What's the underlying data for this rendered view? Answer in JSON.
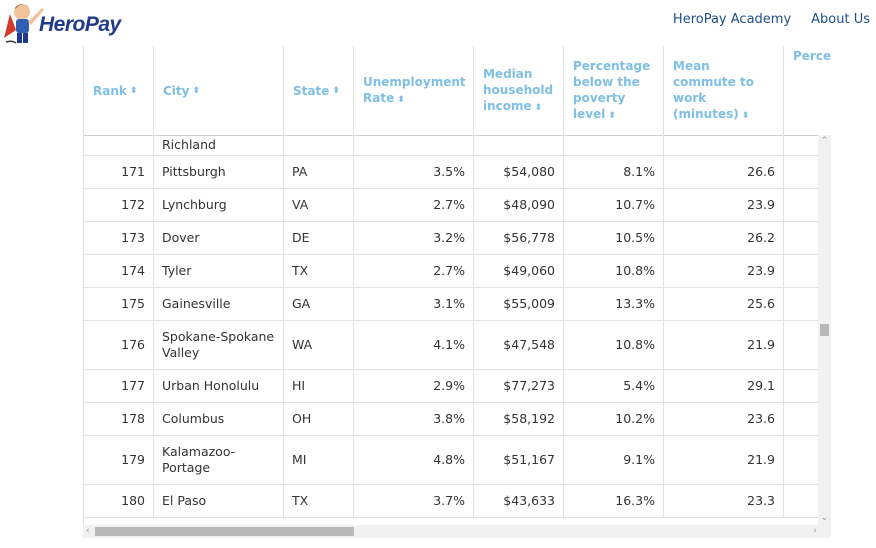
{
  "brand": {
    "logo_text": "HeroPay"
  },
  "nav": {
    "academy": "HeroPay Academy",
    "about": "About Us"
  },
  "table": {
    "headers": {
      "rank": "Rank",
      "city": "City",
      "state": "State",
      "unemployment": "Unemployment Rate",
      "median_income": "Median household income",
      "poverty": "Percentage below the poverty level",
      "commute": "Mean commute to work (minutes)",
      "bachelors": "Percentage of workforce with bachelor's degree or higher"
    },
    "sort_icon": "⬍",
    "partial_row": {
      "city": "Richland",
      "median_income": ""
    },
    "rows": [
      {
        "rank": "171",
        "city": "Pittsburgh",
        "state": "PA",
        "unemployment": "3.5%",
        "median_income": "$54,080",
        "poverty": "8.1%",
        "commute": "26.6"
      },
      {
        "rank": "172",
        "city": "Lynchburg",
        "state": "VA",
        "unemployment": "2.7%",
        "median_income": "$48,090",
        "poverty": "10.7%",
        "commute": "23.9"
      },
      {
        "rank": "173",
        "city": "Dover",
        "state": "DE",
        "unemployment": "3.2%",
        "median_income": "$56,778",
        "poverty": "10.5%",
        "commute": "26.2"
      },
      {
        "rank": "174",
        "city": "Tyler",
        "state": "TX",
        "unemployment": "2.7%",
        "median_income": "$49,060",
        "poverty": "10.8%",
        "commute": "23.9"
      },
      {
        "rank": "175",
        "city": "Gainesville",
        "state": "GA",
        "unemployment": "3.1%",
        "median_income": "$55,009",
        "poverty": "13.3%",
        "commute": "25.6"
      },
      {
        "rank": "176",
        "city": "Spokane-Spokane Valley",
        "state": "WA",
        "unemployment": "4.1%",
        "median_income": "$47,548",
        "poverty": "10.8%",
        "commute": "21.9"
      },
      {
        "rank": "177",
        "city": "Urban Honolulu",
        "state": "HI",
        "unemployment": "2.9%",
        "median_income": "$77,273",
        "poverty": "5.4%",
        "commute": "29.1"
      },
      {
        "rank": "178",
        "city": "Columbus",
        "state": "OH",
        "unemployment": "3.8%",
        "median_income": "$58,192",
        "poverty": "10.2%",
        "commute": "23.6"
      },
      {
        "rank": "179",
        "city": "Kalamazoo-Portage",
        "state": "MI",
        "unemployment": "4.8%",
        "median_income": "$51,167",
        "poverty": "9.1%",
        "commute": "21.9"
      },
      {
        "rank": "180",
        "city": "El Paso",
        "state": "TX",
        "unemployment": "3.7%",
        "median_income": "$43,633",
        "poverty": "16.3%",
        "commute": "23.3"
      }
    ]
  },
  "colors": {
    "header_text": "#7fbfe6",
    "brand": "#1f3a8a",
    "nav_link": "#1f4f8f"
  },
  "icons": {
    "logo": "superhero-mascot-icon",
    "sort": "sort-icon",
    "scroll_up": "chevron-up-icon",
    "scroll_down": "chevron-down-icon",
    "scroll_left": "chevron-left-icon",
    "scroll_right": "chevron-right-icon"
  }
}
